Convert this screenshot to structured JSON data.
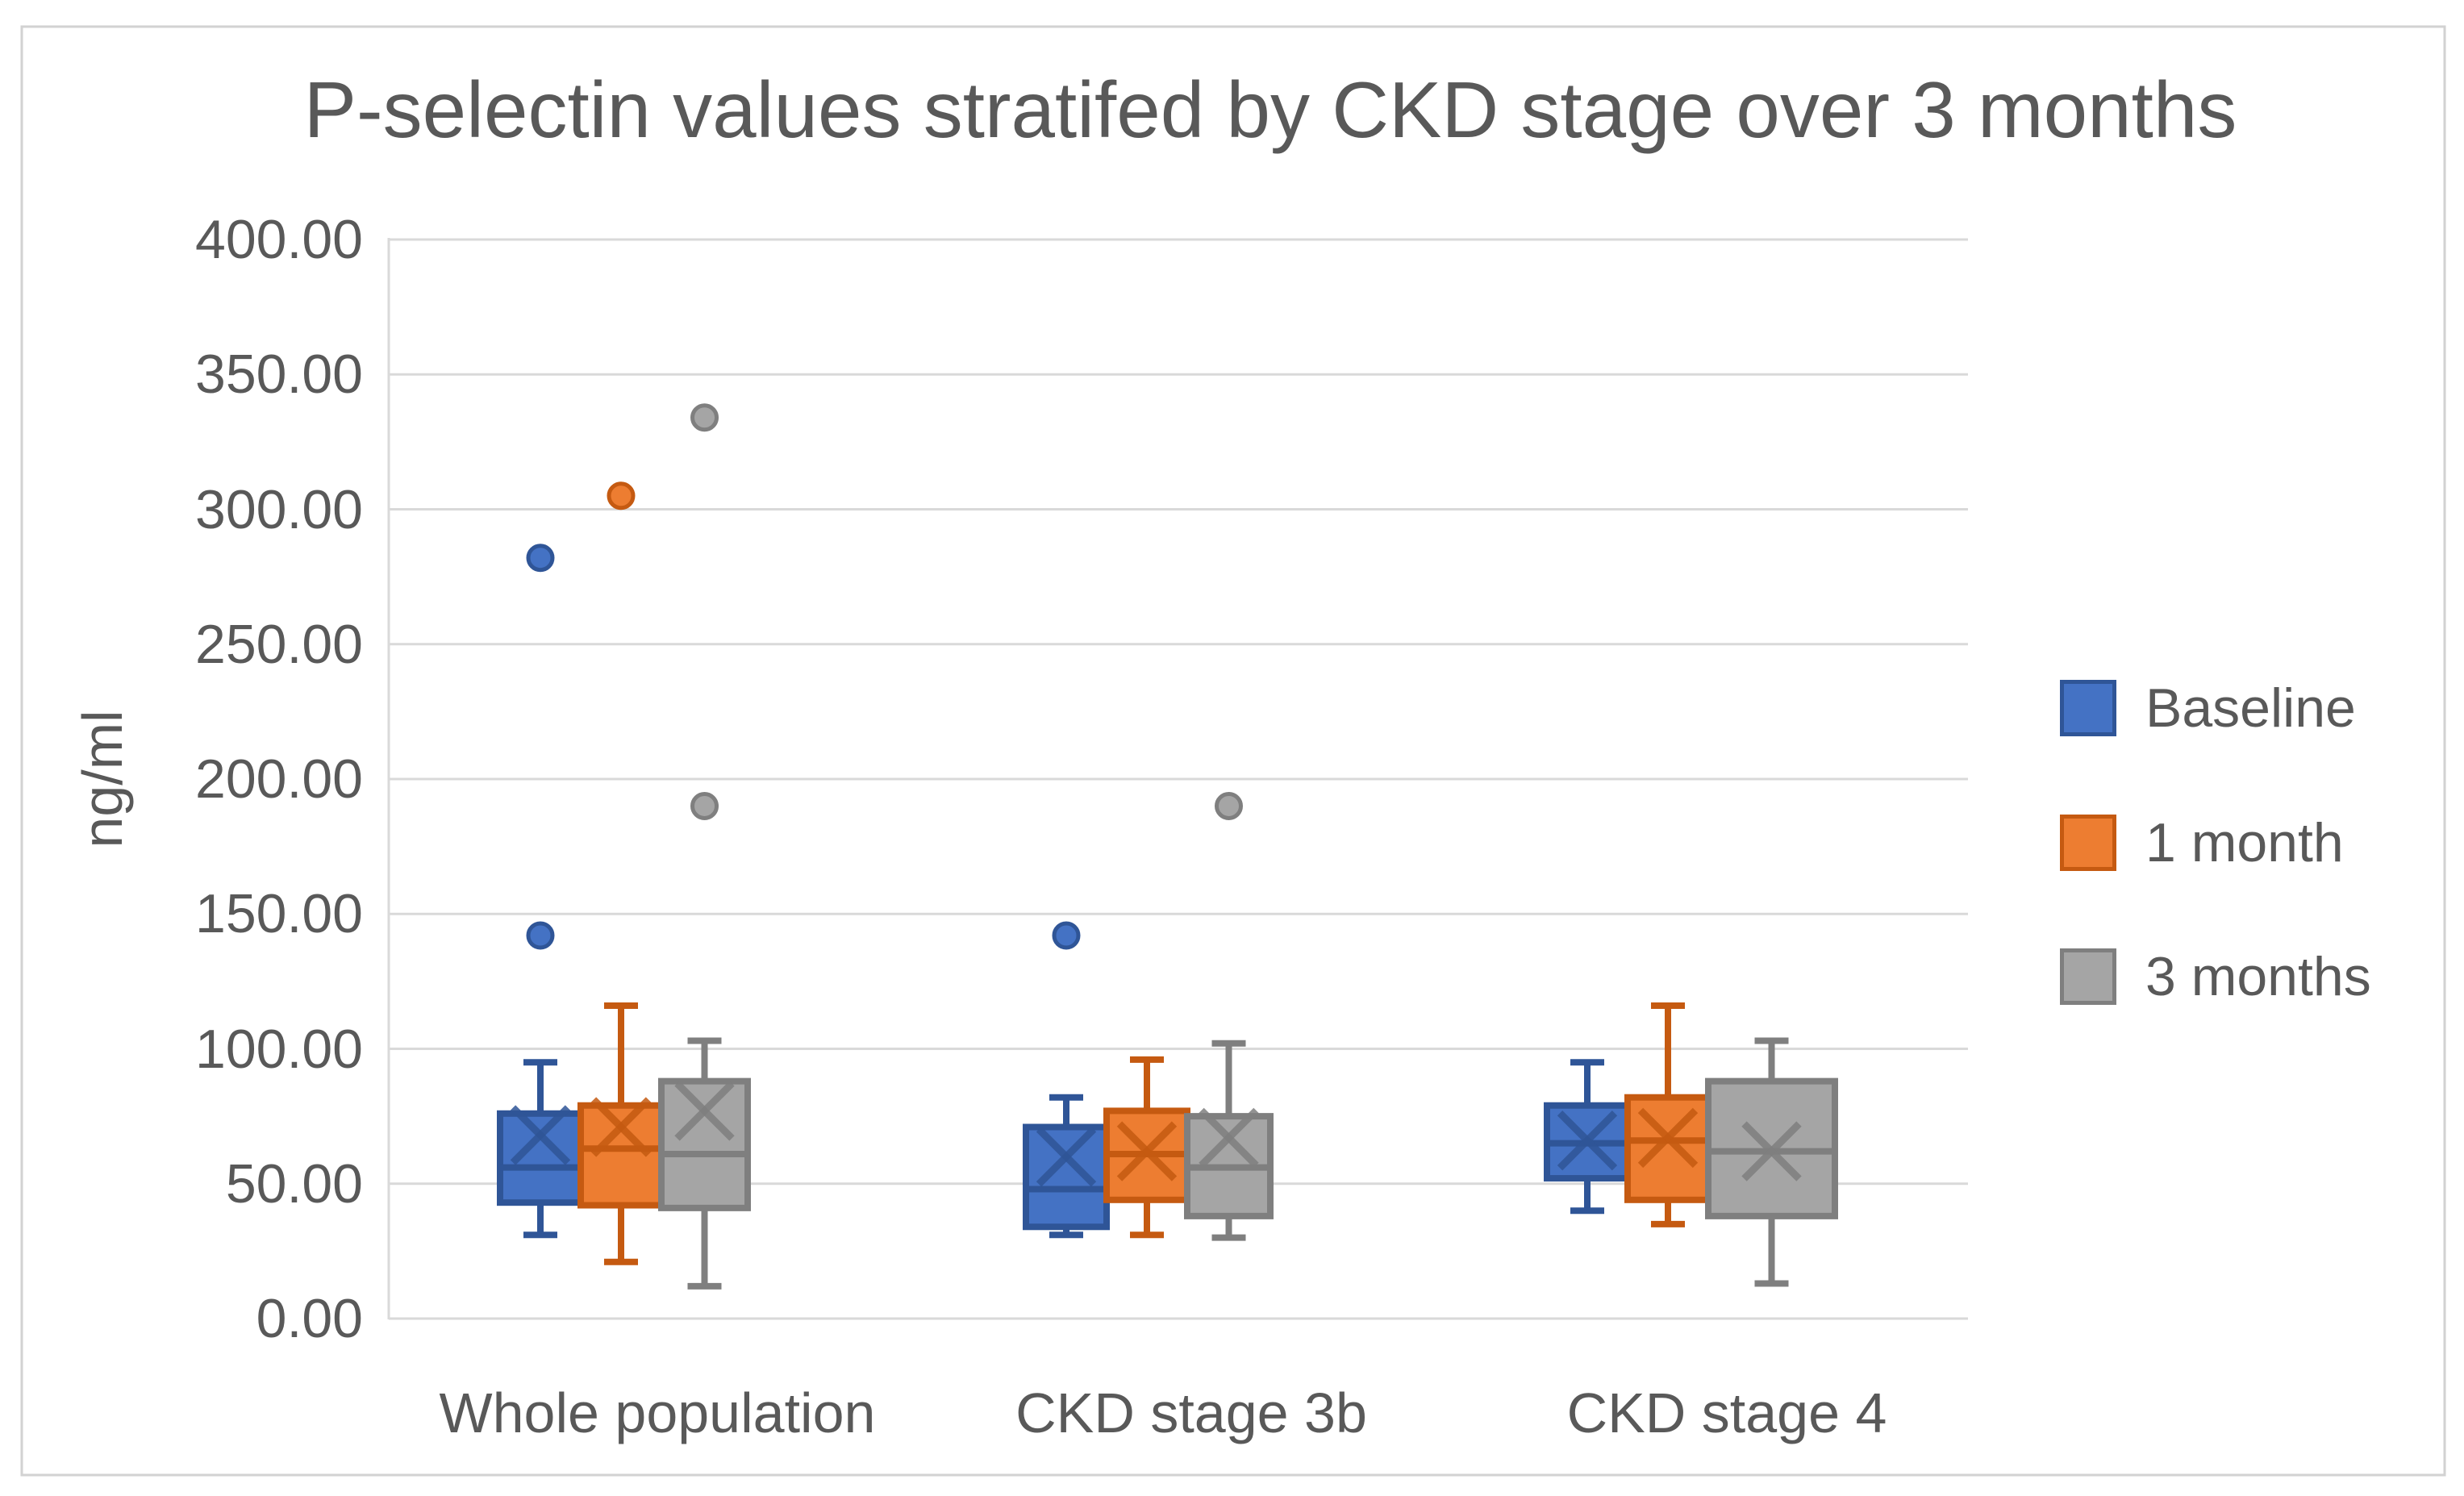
{
  "title": "P-selectin values stratifed by CKD stage over 3 months",
  "y_axis": {
    "label": "ng/ml",
    "tick_labels": [
      "400.00",
      "350.00",
      "300.00",
      "250.00",
      "200.00",
      "150.00",
      "100.00",
      "50.00",
      "0.00"
    ],
    "tick_values": [
      400,
      350,
      300,
      250,
      200,
      150,
      100,
      50,
      0
    ]
  },
  "x_axis": {
    "categories": [
      "Whole population",
      "CKD stage 3b",
      "CKD stage 4"
    ]
  },
  "legend": [
    {
      "label": "Baseline",
      "fill": "#4472C4",
      "border": "#2F5597"
    },
    {
      "label": "1 month",
      "fill": "#ED7D31",
      "border": "#C55A11"
    },
    {
      "label": "3 months",
      "fill": "#A5A5A5",
      "border": "#7F7F7F"
    }
  ],
  "colors": {
    "gridline": "#D9D9D9",
    "axis_text": "#595959",
    "chart_border": "#D2D2D2"
  },
  "chart_data": {
    "type": "boxplot",
    "title": "P-selectin values stratifed by CKD stage over 3 months",
    "ylabel": "ng/ml",
    "ylim": [
      0,
      400
    ],
    "ytick_step": 50,
    "grid": true,
    "legend_position": "right",
    "categories": [
      "Whole population",
      "CKD stage 3b",
      "CKD stage 4"
    ],
    "series": [
      {
        "name": "Baseline",
        "fill": "#4472C4",
        "border": "#2F5597",
        "boxes": [
          {
            "category": "Whole population",
            "whisker_low": 31,
            "q1": 43,
            "median": 56,
            "q3": 76,
            "whisker_high": 95,
            "mean": 68,
            "outliers": [
              142,
              282
            ]
          },
          {
            "category": "CKD stage 3b",
            "whisker_low": 31,
            "q1": 34,
            "median": 48,
            "q3": 71,
            "whisker_high": 82,
            "mean": 60,
            "outliers": [
              142
            ]
          },
          {
            "category": "CKD stage 4",
            "whisker_low": 40,
            "q1": 52,
            "median": 65,
            "q3": 79,
            "whisker_high": 95,
            "mean": 66,
            "outliers": []
          }
        ]
      },
      {
        "name": "1 month",
        "fill": "#ED7D31",
        "border": "#C55A11",
        "boxes": [
          {
            "category": "Whole population",
            "whisker_low": 21,
            "q1": 42,
            "median": 63,
            "q3": 79,
            "whisker_high": 116,
            "mean": 71,
            "outliers": [
              305
            ]
          },
          {
            "category": "CKD stage 3b",
            "whisker_low": 31,
            "q1": 44,
            "median": 61,
            "q3": 77,
            "whisker_high": 96,
            "mean": 62,
            "outliers": []
          },
          {
            "category": "CKD stage 4",
            "whisker_low": 35,
            "q1": 44,
            "median": 66,
            "q3": 82,
            "whisker_high": 116,
            "mean": 67,
            "outliers": []
          }
        ]
      },
      {
        "name": "3 months",
        "fill": "#A5A5A5",
        "border": "#7F7F7F",
        "boxes": [
          {
            "category": "Whole population",
            "whisker_low": 12,
            "q1": 41,
            "median": 61,
            "q3": 88,
            "whisker_high": 103,
            "mean": 77,
            "outliers": [
              190,
              334
            ]
          },
          {
            "category": "CKD stage 3b",
            "whisker_low": 30,
            "q1": 38,
            "median": 56,
            "q3": 75,
            "whisker_high": 102,
            "mean": 67,
            "outliers": [
              190
            ]
          },
          {
            "category": "CKD stage 4",
            "whisker_low": 13,
            "q1": 38,
            "median": 62,
            "q3": 88,
            "whisker_high": 103,
            "mean": 62,
            "outliers": []
          }
        ]
      }
    ]
  }
}
